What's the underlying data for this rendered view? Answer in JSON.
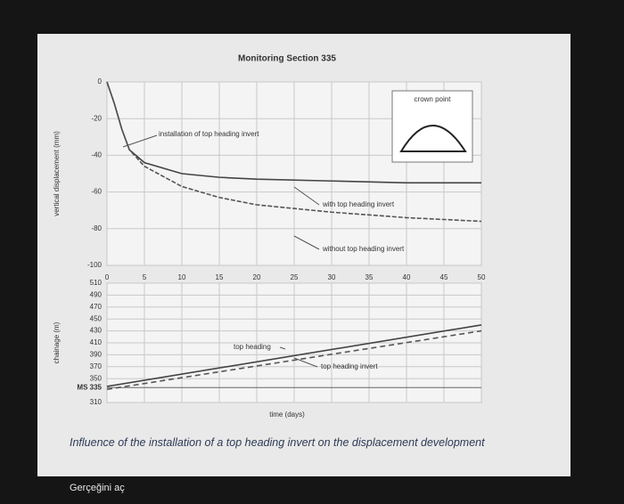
{
  "chart_data": [
    {
      "type": "line",
      "title": "Monitoring Section 335",
      "y_label": "vertical displacement (mm)",
      "x": [
        0,
        1,
        2,
        3,
        5,
        10,
        15,
        20,
        30,
        40,
        50
      ],
      "series": [
        {
          "name": "with top heading invert",
          "color": "#444444",
          "values": [
            0,
            -12,
            -26,
            -37,
            -44,
            -50,
            -52,
            -53,
            -54,
            -55,
            -55
          ]
        },
        {
          "name": "without top heading invert",
          "color": "#555555",
          "values": [
            0,
            -12,
            -26,
            -37,
            -46,
            -57,
            -63,
            -67,
            -71,
            -74,
            -76
          ]
        }
      ],
      "annotations": [
        "installation of top heading invert",
        "crown point"
      ],
      "xlim": [
        0,
        50
      ],
      "xticks": [
        0,
        5,
        10,
        15,
        20,
        25,
        30,
        35,
        40,
        45,
        50
      ],
      "ylim": [
        -100,
        0
      ],
      "yticks": [
        0,
        -20,
        -40,
        -60,
        -80,
        -100
      ],
      "grid": true
    },
    {
      "type": "line",
      "x_label": "time (days)",
      "y_label": "chainage (m)",
      "x": [
        0,
        50
      ],
      "series": [
        {
          "name": "top heading",
          "color": "#444444",
          "values": [
            337,
            440
          ]
        },
        {
          "name": "top heading invert",
          "color": "#555555",
          "values": [
            332,
            430
          ]
        }
      ],
      "xlim": [
        0,
        50
      ],
      "ylim": [
        310,
        510
      ],
      "yticks": [
        510,
        490,
        470,
        450,
        430,
        410,
        390,
        370,
        350,
        {
          "value": 335,
          "label": "MS 335"
        },
        310
      ],
      "grid": true
    }
  ],
  "caption": "Influence of the installation of a top heading invert on the displacement development",
  "link": "Gerçeğini aç"
}
